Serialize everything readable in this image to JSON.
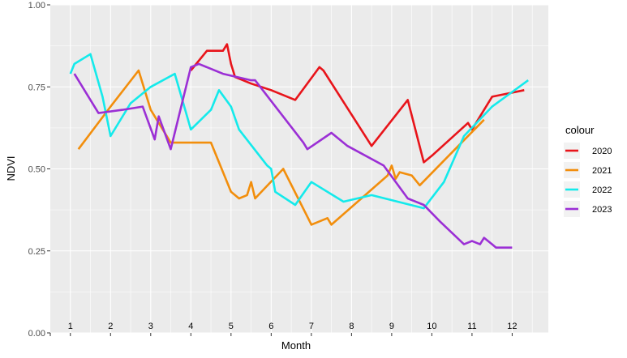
{
  "chart_data": {
    "type": "line",
    "title": "",
    "xlabel": "Month",
    "ylabel": "NDVI",
    "xlim": [
      0.5,
      12.9
    ],
    "ylim": [
      0,
      1
    ],
    "yticks": [
      0,
      0.25,
      0.5,
      0.75,
      1
    ],
    "ytick_labels": [
      "0.00",
      "0.25",
      "0.50",
      "0.75",
      "1.00"
    ],
    "month_labels": [
      "1",
      "2",
      "3",
      "4",
      "5",
      "6",
      "7",
      "8",
      "9",
      "10",
      "11",
      "12"
    ],
    "grid": true,
    "legend_title": "colour",
    "legend_position": "right",
    "series": [
      {
        "name": "2020",
        "color": "#e8141a",
        "points": [
          [
            4.0,
            0.8
          ],
          [
            4.4,
            0.86
          ],
          [
            4.8,
            0.86
          ],
          [
            4.9,
            0.88
          ],
          [
            5.0,
            0.82
          ],
          [
            5.1,
            0.78
          ],
          [
            5.5,
            0.76
          ],
          [
            6.0,
            0.74
          ],
          [
            6.6,
            0.71
          ],
          [
            7.2,
            0.81
          ],
          [
            7.3,
            0.8
          ],
          [
            8.5,
            0.57
          ],
          [
            9.4,
            0.71
          ],
          [
            9.8,
            0.52
          ],
          [
            10.0,
            0.54
          ],
          [
            10.9,
            0.64
          ],
          [
            11.0,
            0.62
          ],
          [
            11.5,
            0.72
          ],
          [
            12.3,
            0.74
          ]
        ]
      },
      {
        "name": "2021",
        "color": "#f28e0c",
        "points": [
          [
            1.2,
            0.56
          ],
          [
            2.0,
            0.69
          ],
          [
            2.7,
            0.8
          ],
          [
            3.0,
            0.68
          ],
          [
            3.5,
            0.58
          ],
          [
            4.0,
            0.58
          ],
          [
            4.5,
            0.58
          ],
          [
            5.0,
            0.43
          ],
          [
            5.2,
            0.41
          ],
          [
            5.4,
            0.42
          ],
          [
            5.5,
            0.46
          ],
          [
            5.6,
            0.41
          ],
          [
            6.3,
            0.5
          ],
          [
            7.0,
            0.33
          ],
          [
            7.4,
            0.35
          ],
          [
            7.5,
            0.33
          ],
          [
            8.9,
            0.48
          ],
          [
            9.0,
            0.51
          ],
          [
            9.1,
            0.47
          ],
          [
            9.2,
            0.49
          ],
          [
            9.5,
            0.48
          ],
          [
            9.7,
            0.45
          ],
          [
            10.5,
            0.55
          ],
          [
            11.3,
            0.65
          ]
        ]
      },
      {
        "name": "2022",
        "color": "#14eaeb",
        "points": [
          [
            1.0,
            0.79
          ],
          [
            1.1,
            0.82
          ],
          [
            1.5,
            0.85
          ],
          [
            1.8,
            0.72
          ],
          [
            2.0,
            0.6
          ],
          [
            2.5,
            0.7
          ],
          [
            3.0,
            0.75
          ],
          [
            3.6,
            0.79
          ],
          [
            4.0,
            0.62
          ],
          [
            4.5,
            0.68
          ],
          [
            4.7,
            0.74
          ],
          [
            5.0,
            0.69
          ],
          [
            5.2,
            0.62
          ],
          [
            5.9,
            0.51
          ],
          [
            6.0,
            0.5
          ],
          [
            6.1,
            0.43
          ],
          [
            6.6,
            0.39
          ],
          [
            7.0,
            0.46
          ],
          [
            7.8,
            0.4
          ],
          [
            8.5,
            0.42
          ],
          [
            9.8,
            0.38
          ],
          [
            10.3,
            0.46
          ],
          [
            10.8,
            0.6
          ],
          [
            11.5,
            0.69
          ],
          [
            12.4,
            0.77
          ]
        ]
      },
      {
        "name": "2023",
        "color": "#9b2fd5",
        "points": [
          [
            1.1,
            0.79
          ],
          [
            1.7,
            0.67
          ],
          [
            2.3,
            0.68
          ],
          [
            2.8,
            0.69
          ],
          [
            3.1,
            0.59
          ],
          [
            3.2,
            0.66
          ],
          [
            3.5,
            0.56
          ],
          [
            4.0,
            0.81
          ],
          [
            4.2,
            0.82
          ],
          [
            4.8,
            0.79
          ],
          [
            5.5,
            0.77
          ],
          [
            5.6,
            0.77
          ],
          [
            6.8,
            0.58
          ],
          [
            6.9,
            0.56
          ],
          [
            7.5,
            0.61
          ],
          [
            7.9,
            0.57
          ],
          [
            8.8,
            0.51
          ],
          [
            9.4,
            0.41
          ],
          [
            9.8,
            0.39
          ],
          [
            10.2,
            0.34
          ],
          [
            10.8,
            0.27
          ],
          [
            11.0,
            0.28
          ],
          [
            11.2,
            0.27
          ],
          [
            11.3,
            0.29
          ],
          [
            11.5,
            0.27
          ],
          [
            11.6,
            0.26
          ],
          [
            11.8,
            0.26
          ],
          [
            12.0,
            0.26
          ]
        ]
      }
    ]
  }
}
